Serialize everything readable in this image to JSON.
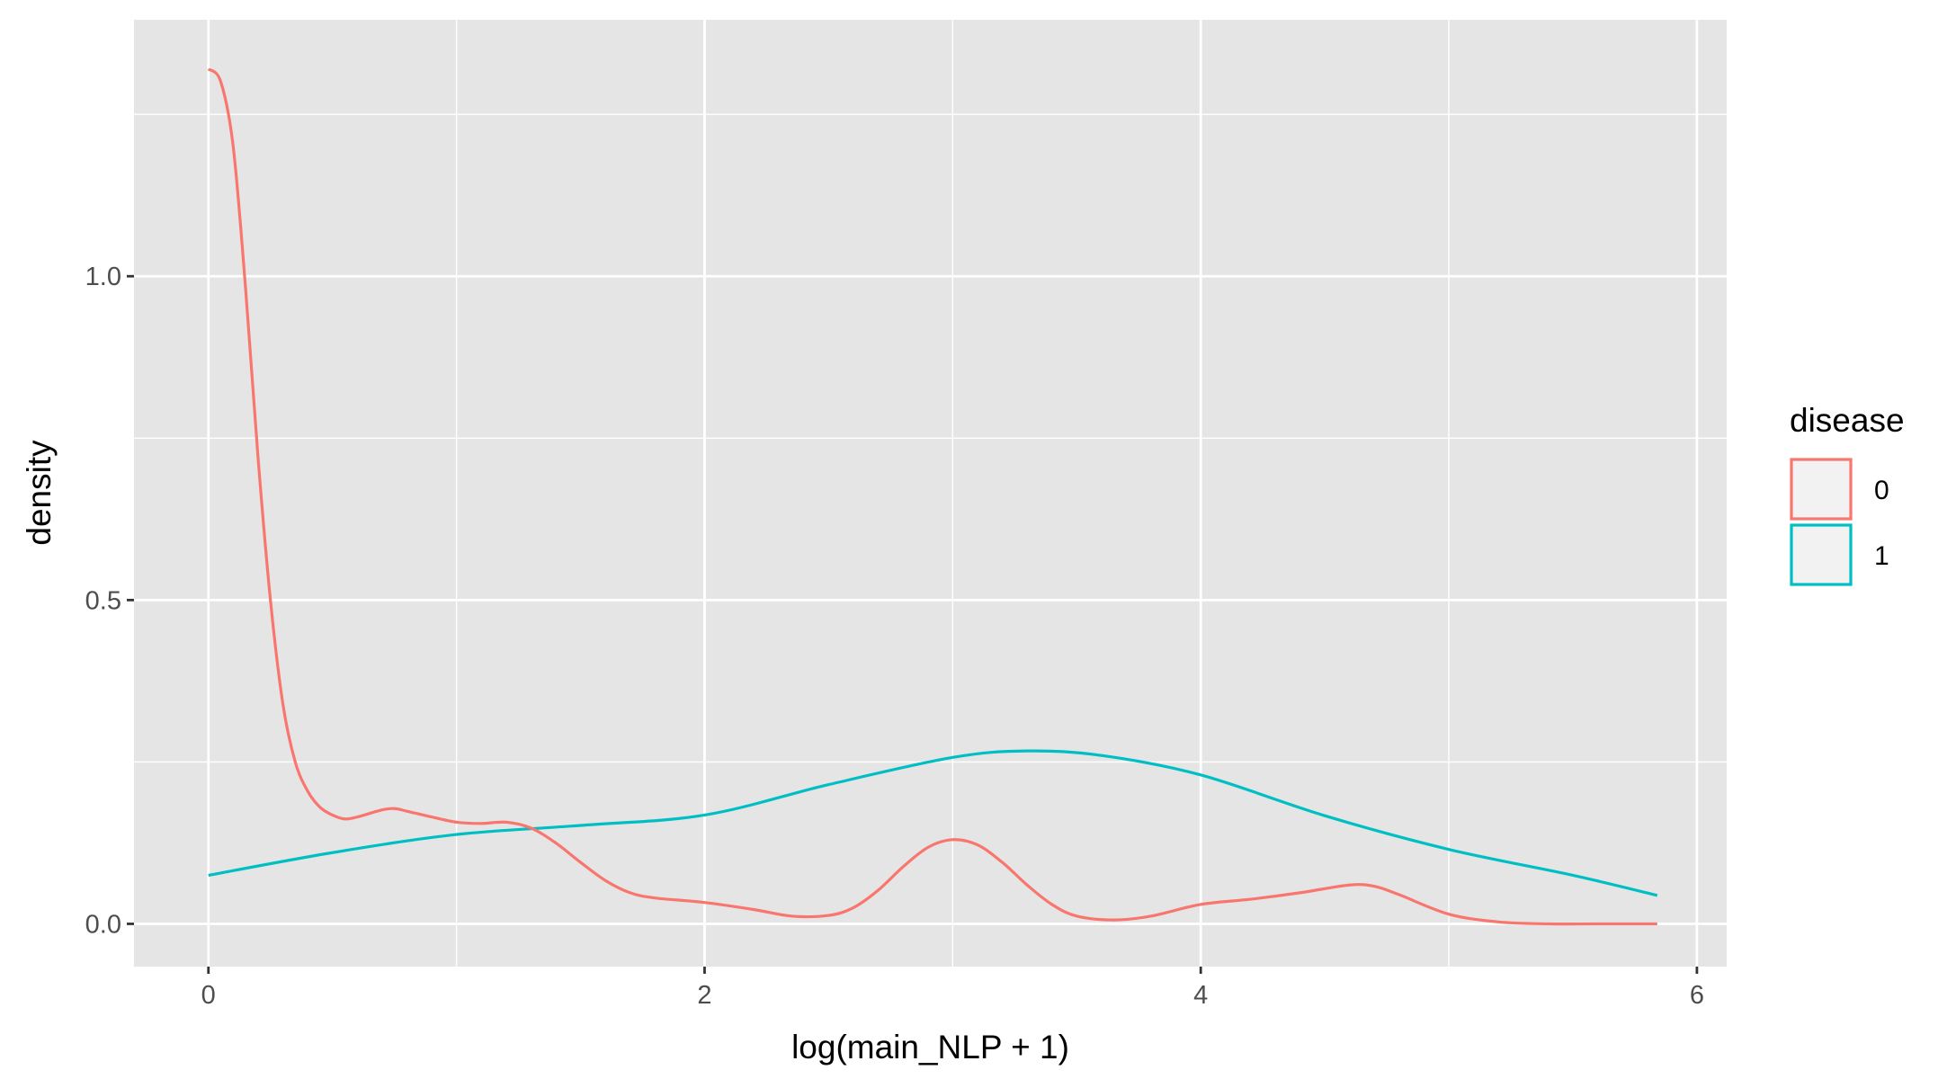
{
  "chart_data": {
    "type": "line",
    "title": "",
    "xlabel": "log(main_NLP + 1)",
    "ylabel": "density",
    "xlim": [
      -0.3,
      6.12
    ],
    "ylim": [
      -0.066,
      1.396
    ],
    "x_ticks": [
      0,
      2,
      4,
      6
    ],
    "x_tick_labels": [
      "0",
      "2",
      "4",
      "6"
    ],
    "y_ticks": [
      0.0,
      0.5,
      1.0
    ],
    "y_tick_labels": [
      "0.0",
      "0.5",
      "1.0"
    ],
    "grid": true,
    "panel_background": "#e5e5e5",
    "legend": {
      "title": "disease",
      "position": "right"
    },
    "series": [
      {
        "name": "0",
        "color": "#f8766d",
        "points": [
          [
            0.0,
            1.32
          ],
          [
            0.05,
            1.3
          ],
          [
            0.1,
            1.2
          ],
          [
            0.15,
            0.98
          ],
          [
            0.2,
            0.72
          ],
          [
            0.25,
            0.5
          ],
          [
            0.3,
            0.34
          ],
          [
            0.35,
            0.25
          ],
          [
            0.4,
            0.205
          ],
          [
            0.45,
            0.18
          ],
          [
            0.5,
            0.168
          ],
          [
            0.55,
            0.162
          ],
          [
            0.6,
            0.165
          ],
          [
            0.7,
            0.176
          ],
          [
            0.75,
            0.178
          ],
          [
            0.8,
            0.174
          ],
          [
            0.9,
            0.165
          ],
          [
            1.0,
            0.157
          ],
          [
            1.1,
            0.155
          ],
          [
            1.2,
            0.157
          ],
          [
            1.3,
            0.148
          ],
          [
            1.4,
            0.125
          ],
          [
            1.5,
            0.095
          ],
          [
            1.6,
            0.067
          ],
          [
            1.7,
            0.048
          ],
          [
            1.8,
            0.04
          ],
          [
            2.0,
            0.033
          ],
          [
            2.2,
            0.022
          ],
          [
            2.35,
            0.012
          ],
          [
            2.5,
            0.013
          ],
          [
            2.6,
            0.025
          ],
          [
            2.7,
            0.052
          ],
          [
            2.8,
            0.088
          ],
          [
            2.9,
            0.118
          ],
          [
            3.0,
            0.13
          ],
          [
            3.1,
            0.122
          ],
          [
            3.2,
            0.095
          ],
          [
            3.3,
            0.06
          ],
          [
            3.4,
            0.03
          ],
          [
            3.5,
            0.012
          ],
          [
            3.65,
            0.006
          ],
          [
            3.8,
            0.012
          ],
          [
            4.0,
            0.03
          ],
          [
            4.2,
            0.038
          ],
          [
            4.4,
            0.048
          ],
          [
            4.6,
            0.06
          ],
          [
            4.7,
            0.058
          ],
          [
            4.8,
            0.045
          ],
          [
            5.0,
            0.015
          ],
          [
            5.2,
            0.003
          ],
          [
            5.4,
            0.0
          ],
          [
            5.6,
            0.0
          ],
          [
            5.84,
            0.0
          ]
        ]
      },
      {
        "name": "1",
        "color": "#00bfc4",
        "points": [
          [
            0.0,
            0.075
          ],
          [
            0.5,
            0.11
          ],
          [
            1.0,
            0.138
          ],
          [
            1.5,
            0.152
          ],
          [
            2.0,
            0.168
          ],
          [
            2.5,
            0.215
          ],
          [
            3.0,
            0.257
          ],
          [
            3.3,
            0.267
          ],
          [
            3.6,
            0.26
          ],
          [
            4.0,
            0.23
          ],
          [
            4.5,
            0.167
          ],
          [
            5.0,
            0.115
          ],
          [
            5.5,
            0.075
          ],
          [
            5.84,
            0.044
          ]
        ]
      }
    ]
  }
}
